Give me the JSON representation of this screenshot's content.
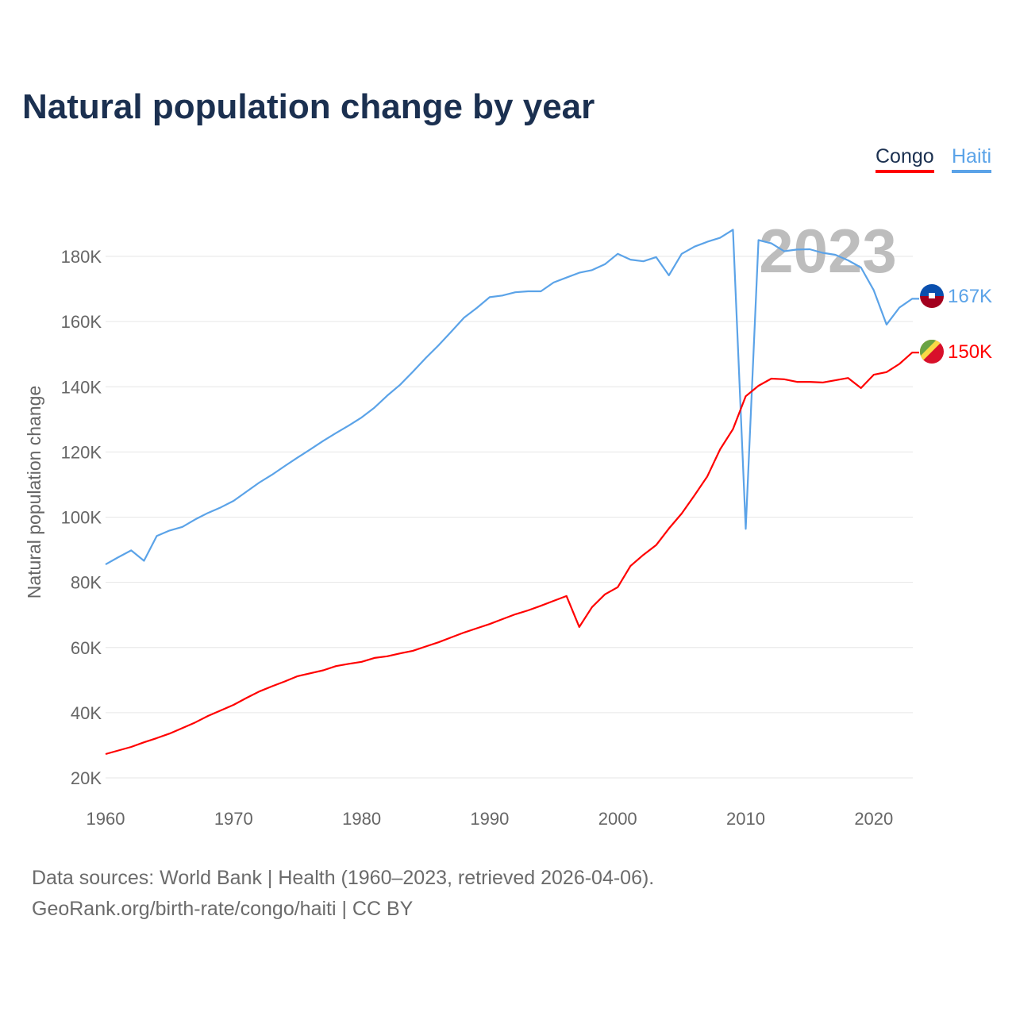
{
  "title": "Natural population change by year",
  "legend": [
    {
      "name": "Congo",
      "color": "#ff0000"
    },
    {
      "name": "Haiti",
      "color": "#5ba3e8"
    }
  ],
  "source_line1": "Data sources: World Bank | Health (1960–2023, retrieved 2026-04-06).",
  "source_line2": "GeoRank.org/birth-rate/congo/haiti | CC BY",
  "chart_data": {
    "type": "line",
    "title": "Natural population change by year",
    "xlabel": "",
    "ylabel": "Natural population change",
    "year_watermark": "2023",
    "xlim": [
      1960,
      2023
    ],
    "ylim": [
      17,
      192
    ],
    "x_ticks": [
      "1960",
      "1970",
      "1980",
      "1990",
      "2000",
      "2010",
      "2020"
    ],
    "y_ticks": [
      {
        "v": 20,
        "label": "20K"
      },
      {
        "v": 40,
        "label": "40K"
      },
      {
        "v": 60,
        "label": "60K"
      },
      {
        "v": 80,
        "label": "80K"
      },
      {
        "v": 100,
        "label": "100K"
      },
      {
        "v": 120,
        "label": "120K"
      },
      {
        "v": 140,
        "label": "140K"
      },
      {
        "v": 160,
        "label": "160K"
      },
      {
        "v": 180,
        "label": "180K"
      }
    ],
    "grid": true,
    "legend_position": "top-right",
    "x": [
      1960,
      1961,
      1962,
      1963,
      1964,
      1965,
      1966,
      1967,
      1968,
      1969,
      1970,
      1971,
      1972,
      1973,
      1974,
      1975,
      1976,
      1977,
      1978,
      1979,
      1980,
      1981,
      1982,
      1983,
      1984,
      1985,
      1986,
      1987,
      1988,
      1989,
      1990,
      1991,
      1992,
      1993,
      1994,
      1995,
      1996,
      1997,
      1998,
      1999,
      2000,
      2001,
      2002,
      2003,
      2004,
      2005,
      2006,
      2007,
      2008,
      2009,
      2010,
      2011,
      2012,
      2013,
      2014,
      2015,
      2016,
      2017,
      2018,
      2019,
      2020,
      2021,
      2022,
      2023
    ],
    "series": [
      {
        "name": "Haiti",
        "color": "#5ba3e8",
        "end_label": "167K",
        "flag": "haiti",
        "values": [
          85.5,
          87.7,
          89.8,
          86.6,
          94.2,
          95.9,
          97,
          99.3,
          101.3,
          103,
          105,
          107.8,
          110.6,
          113,
          115.7,
          118.3,
          120.8,
          123.4,
          125.8,
          128.1,
          130.6,
          133.6,
          137.3,
          140.6,
          144.6,
          148.8,
          152.7,
          156.9,
          161.2,
          164.2,
          167.5,
          168,
          169,
          169.3,
          169.3,
          172,
          173.5,
          175,
          175.8,
          177.6,
          180.8,
          179,
          178.5,
          179.8,
          174.2,
          180.8,
          183,
          184.5,
          185.7,
          188.2,
          96.4,
          185,
          184,
          181.6,
          182.1,
          182.2,
          181.1,
          180.5,
          178.8,
          176.6,
          169.6,
          159.1,
          164.3,
          167
        ]
      },
      {
        "name": "Congo",
        "color": "#ff0000",
        "end_label": "150K",
        "flag": "congo",
        "values": [
          27.3,
          28.4,
          29.5,
          30.9,
          32.2,
          33.6,
          35.3,
          37,
          39,
          40.7,
          42.4,
          44.5,
          46.5,
          48.1,
          49.6,
          51.2,
          52.1,
          53,
          54.3,
          55,
          55.6,
          56.8,
          57.3,
          58.2,
          59,
          60.3,
          61.6,
          63.1,
          64.6,
          65.9,
          67.2,
          68.7,
          70.2,
          71.4,
          72.8,
          74.3,
          75.8,
          66.3,
          72.4,
          76.3,
          78.5,
          85,
          88.4,
          91.4,
          96.5,
          101.1,
          106.7,
          112.5,
          120.8,
          127,
          137.1,
          140.3,
          142.5,
          142.3,
          141.5,
          141.5,
          141.3,
          142,
          142.7,
          139.6,
          143.7,
          144.5,
          147,
          150.5
        ]
      }
    ]
  }
}
